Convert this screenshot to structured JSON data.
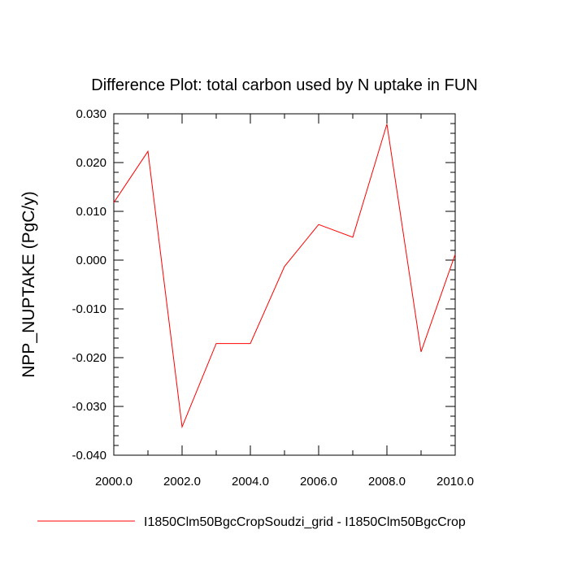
{
  "chart_data": {
    "type": "line",
    "title": "Difference Plot: total carbon used by N uptake in FUN",
    "ylabel": "NPP_NUPTAKE  (PgC/y)",
    "xlabel": "",
    "xlim": [
      2000,
      2010
    ],
    "ylim": [
      -0.04,
      0.03
    ],
    "x_ticks": [
      2000,
      2002,
      2004,
      2006,
      2008,
      2010
    ],
    "x_tick_labels": [
      "2000.0",
      "2002.0",
      "2004.0",
      "2006.0",
      "2008.0",
      "2010.0"
    ],
    "y_ticks": [
      -0.04,
      -0.03,
      -0.02,
      -0.01,
      0.0,
      0.01,
      0.02,
      0.03
    ],
    "y_tick_labels": [
      "-0.040",
      "-0.030",
      "-0.020",
      "-0.010",
      "0.000",
      "0.010",
      "0.020",
      "0.030"
    ],
    "grid": false,
    "legend_position": "bottom",
    "series": [
      {
        "name": "I1850Clm50BgcCropSoudzi_grid - I1850Clm50BgcCrop",
        "color": "#ff0000",
        "x": [
          2000,
          2001,
          2002,
          2003,
          2004,
          2005,
          2006,
          2007,
          2008,
          2009,
          2010
        ],
        "y": [
          0.0118,
          0.0223,
          -0.0342,
          -0.0171,
          -0.0171,
          -0.0013,
          0.0073,
          0.0047,
          0.0279,
          -0.0188,
          0.0012
        ]
      }
    ]
  }
}
